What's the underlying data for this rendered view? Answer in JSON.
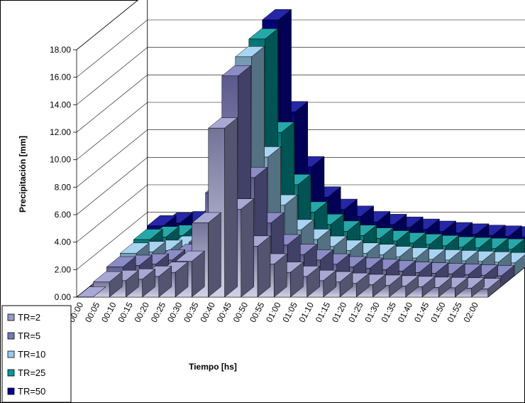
{
  "chart_data": {
    "type": "bar",
    "style": "3d-clustered-depth",
    "title": "",
    "xlabel": "Tiempo [hs]",
    "ylabel": "Precipitación [mm]",
    "ylim": [
      0,
      18
    ],
    "yticks": [
      "0.00",
      "2.00",
      "4.00",
      "6.00",
      "8.00",
      "10.00",
      "12.00",
      "14.00",
      "16.00",
      "18.00"
    ],
    "grid": true,
    "legend_position": "bottom-left",
    "categories": [
      "00:00",
      "00:05",
      "00:10",
      "00:15",
      "00:20",
      "00:25",
      "00:30",
      "00:35",
      "00:40",
      "00:45",
      "00:50",
      "00:55",
      "01:00",
      "01:05",
      "01:10",
      "01:15",
      "01:20",
      "01:25",
      "01:30",
      "01:35",
      "01:40",
      "01:45",
      "01:50",
      "01:55",
      "02:00"
    ],
    "series": [
      {
        "name": "TR=2",
        "color": "#9999cc",
        "values": [
          0.0,
          1.1,
          1.2,
          1.3,
          1.5,
          1.8,
          2.6,
          5.4,
          12.3,
          6.4,
          3.7,
          2.4,
          1.8,
          1.5,
          1.2,
          1.1,
          1.0,
          0.9,
          0.85,
          0.8,
          0.75,
          0.7,
          0.68,
          0.65,
          0.6
        ]
      },
      {
        "name": "TR=5",
        "color": "#7777bb",
        "values": [
          0.0,
          1.4,
          1.5,
          1.6,
          1.9,
          2.3,
          3.2,
          6.8,
          15.3,
          7.9,
          4.6,
          3.0,
          2.3,
          1.9,
          1.6,
          1.4,
          1.3,
          1.2,
          1.1,
          1.0,
          0.95,
          0.9,
          0.85,
          0.8,
          0.75
        ]
      },
      {
        "name": "TR=10",
        "color": "#99ccee",
        "values": [
          0.0,
          1.6,
          1.7,
          1.8,
          2.1,
          2.6,
          3.5,
          7.6,
          15.9,
          8.6,
          5.1,
          3.3,
          2.6,
          2.1,
          1.8,
          1.6,
          1.5,
          1.35,
          1.25,
          1.15,
          1.1,
          1.05,
          1.0,
          0.95,
          0.9
        ]
      },
      {
        "name": "TR=25",
        "color": "#009999",
        "values": [
          0.0,
          1.8,
          2.0,
          2.1,
          2.4,
          2.9,
          3.9,
          8.5,
          16.4,
          9.6,
          5.8,
          3.8,
          2.9,
          2.4,
          2.1,
          1.9,
          1.7,
          1.55,
          1.45,
          1.35,
          1.25,
          1.2,
          1.15,
          1.1,
          1.05
        ]
      },
      {
        "name": "TR=50",
        "color": "#000099",
        "values": [
          0.0,
          2.0,
          2.2,
          2.3,
          2.6,
          3.2,
          4.3,
          9.2,
          17.0,
          10.3,
          6.3,
          4.1,
          3.2,
          2.7,
          2.3,
          2.1,
          1.9,
          1.75,
          1.6,
          1.5,
          1.4,
          1.3,
          1.25,
          1.2,
          1.15
        ]
      }
    ]
  }
}
